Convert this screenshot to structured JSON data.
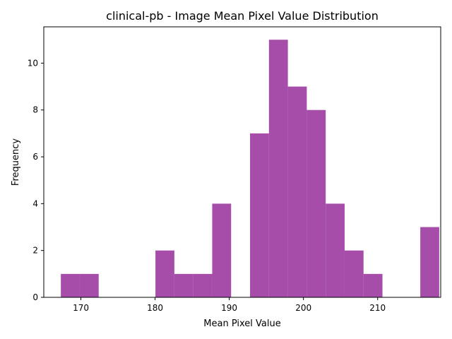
{
  "chart_data": {
    "type": "bar",
    "subtype": "histogram",
    "title": "clinical-pb - Image Mean Pixel Value Distribution",
    "xlabel": "Mean Pixel Value",
    "ylabel": "Frequency",
    "bins": {
      "start": 167.3,
      "width": 2.55,
      "counts": [
        1,
        1,
        0,
        0,
        0,
        2,
        1,
        1,
        4,
        0,
        7,
        11,
        9,
        8,
        4,
        2,
        1,
        0,
        0,
        3
      ]
    },
    "xlim": [
      165.0,
      218.5
    ],
    "ylim": [
      0,
      11.55
    ],
    "xticks": [
      170,
      180,
      190,
      200,
      210
    ],
    "yticks": [
      0,
      2,
      4,
      6,
      8,
      10
    ],
    "bar_color": "#9b3a9e",
    "bar_opacity": 0.9,
    "grid": false,
    "legend": "none"
  }
}
